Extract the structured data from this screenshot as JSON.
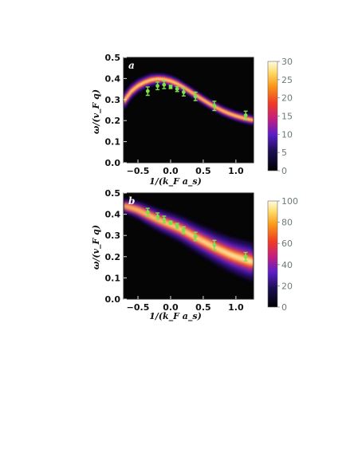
{
  "chart_data": [
    {
      "type": "heatmap",
      "panel_label": "a",
      "xlabel": "1/(k_F a_s)",
      "ylabel": "ω/(v_F q)",
      "xlim": [
        -0.72,
        1.27
      ],
      "ylim": [
        0.0,
        0.5
      ],
      "x_ticks": [
        -0.5,
        0.0,
        0.5,
        1.0
      ],
      "x_tick_labels": [
        "−0.5",
        "0.0",
        "0.5",
        "1.0"
      ],
      "y_ticks": [
        0.0,
        0.1,
        0.2,
        0.3,
        0.4,
        0.5
      ],
      "y_tick_labels": [
        "0.0",
        "0.1",
        "0.2",
        "0.3",
        "0.4",
        "0.5"
      ],
      "colorbar": {
        "range": [
          0,
          30
        ],
        "ticks": [
          0,
          5,
          10,
          15,
          20,
          25,
          30
        ],
        "tick_labels": [
          "0",
          "5",
          "10",
          "15",
          "20",
          "25",
          "30"
        ]
      },
      "ridge": {
        "x": [
          -0.72,
          -0.6,
          -0.5,
          -0.4,
          -0.3,
          -0.2,
          -0.1,
          0.0,
          0.1,
          0.2,
          0.3,
          0.4,
          0.5,
          0.6,
          0.7,
          0.8,
          0.9,
          1.0,
          1.1,
          1.2,
          1.27
        ],
        "y": [
          0.29,
          0.34,
          0.365,
          0.382,
          0.393,
          0.398,
          0.396,
          0.388,
          0.375,
          0.358,
          0.338,
          0.318,
          0.298,
          0.279,
          0.262,
          0.246,
          0.233,
          0.222,
          0.213,
          0.206,
          0.202
        ],
        "width": [
          0.014,
          0.012,
          0.011,
          0.01,
          0.01,
          0.009,
          0.009,
          0.009,
          0.009,
          0.008,
          0.008,
          0.008,
          0.008,
          0.008,
          0.008,
          0.008,
          0.008,
          0.008,
          0.008,
          0.008,
          0.008
        ]
      },
      "points": {
        "x": [
          -0.35,
          -0.2,
          -0.1,
          0.0,
          0.1,
          0.2,
          0.38,
          0.67,
          1.15
        ],
        "y": [
          0.34,
          0.365,
          0.37,
          0.36,
          0.35,
          0.335,
          0.315,
          0.27,
          0.225
        ],
        "yerr": [
          0.02,
          0.018,
          0.018,
          0.008,
          0.012,
          0.018,
          0.02,
          0.022,
          0.02
        ]
      }
    },
    {
      "type": "heatmap",
      "panel_label": "b",
      "xlabel": "1/(k_F a_s)",
      "ylabel": "ω/(v_F q)",
      "xlim": [
        -0.72,
        1.27
      ],
      "ylim": [
        0.0,
        0.5
      ],
      "x_ticks": [
        -0.5,
        0.0,
        0.5,
        1.0
      ],
      "x_tick_labels": [
        "−0.5",
        "0.0",
        "0.5",
        "1.0"
      ],
      "y_ticks": [
        0.0,
        0.1,
        0.2,
        0.3,
        0.4,
        0.5
      ],
      "y_tick_labels": [
        "0.0",
        "0.1",
        "0.2",
        "0.3",
        "0.4",
        "0.5"
      ],
      "colorbar": {
        "range": [
          0,
          100
        ],
        "ticks": [
          0,
          20,
          40,
          60,
          80,
          100
        ],
        "tick_labels": [
          "0",
          "20",
          "40",
          "60",
          "80",
          "100"
        ]
      },
      "ridge": {
        "x": [
          -0.72,
          -0.6,
          -0.5,
          -0.4,
          -0.3,
          -0.2,
          -0.1,
          0.0,
          0.1,
          0.2,
          0.3,
          0.4,
          0.5,
          0.6,
          0.7,
          0.8,
          0.9,
          1.0,
          1.1,
          1.2,
          1.27
        ],
        "y": [
          0.44,
          0.43,
          0.42,
          0.405,
          0.39,
          0.375,
          0.362,
          0.35,
          0.337,
          0.322,
          0.305,
          0.288,
          0.272,
          0.256,
          0.24,
          0.226,
          0.212,
          0.2,
          0.19,
          0.18,
          0.174
        ],
        "width": [
          0.013,
          0.014,
          0.016,
          0.018,
          0.019,
          0.02,
          0.021,
          0.022,
          0.023,
          0.024,
          0.025,
          0.026,
          0.027,
          0.028,
          0.029,
          0.03,
          0.031,
          0.032,
          0.033,
          0.034,
          0.034
        ]
      },
      "points": {
        "x": [
          -0.35,
          -0.2,
          -0.1,
          0.0,
          0.1,
          0.2,
          0.38,
          0.67,
          1.15
        ],
        "y": [
          0.41,
          0.39,
          0.375,
          0.36,
          0.345,
          0.325,
          0.295,
          0.255,
          0.2
        ],
        "yerr": [
          0.018,
          0.016,
          0.016,
          0.008,
          0.012,
          0.016,
          0.02,
          0.022,
          0.02
        ]
      }
    }
  ]
}
